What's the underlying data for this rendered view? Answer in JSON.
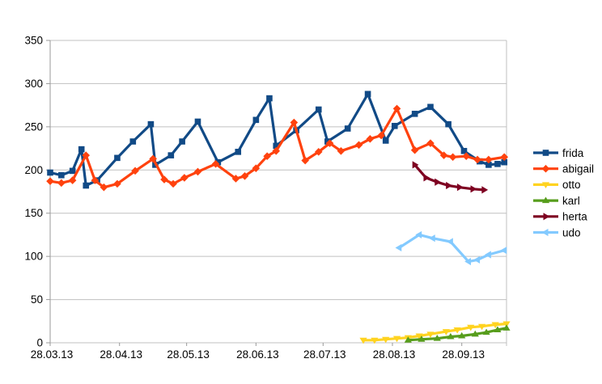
{
  "chart_data": {
    "type": "line",
    "title": "",
    "grid": true,
    "legend_position": "right",
    "colors": {
      "background": "#ffffff",
      "gridline": "#c0c0c0",
      "axis": "#9a9a9a",
      "tick_text": "#000000"
    },
    "x_axis": {
      "label": "",
      "unit": "days since first tick",
      "tick_labels": [
        "28.03.13",
        "28.04.13",
        "28.05.13",
        "28.06.13",
        "28.07.13",
        "28.08.13",
        "28.09.13"
      ],
      "tick_days": [
        0,
        31,
        61,
        92,
        122,
        153,
        184
      ],
      "range_days": [
        0,
        204
      ]
    },
    "y_axis": {
      "label": "",
      "tick_values": [
        0,
        50,
        100,
        150,
        200,
        250,
        300,
        350
      ],
      "range": [
        0,
        350
      ]
    },
    "series": [
      {
        "name": "frida",
        "color": "#114a86",
        "marker": "square",
        "x": [
          0,
          5,
          10,
          14,
          16,
          21,
          30,
          37,
          45,
          47,
          54,
          59,
          66,
          75,
          84,
          92,
          98,
          101,
          110,
          120,
          124,
          133,
          142,
          150,
          154,
          163,
          170,
          178,
          185,
          192,
          196,
          200,
          203
        ],
        "values": [
          197,
          194,
          199,
          224,
          182,
          188,
          214,
          233,
          253,
          206,
          217,
          233,
          256,
          209,
          221,
          258,
          283,
          228,
          246,
          270,
          233,
          248,
          288,
          234,
          251,
          265,
          273,
          253,
          222,
          210,
          206,
          207,
          209
        ]
      },
      {
        "name": "abigail",
        "color": "#ff420e",
        "marker": "diamond",
        "x": [
          0,
          5,
          10,
          16,
          20,
          24,
          30,
          38,
          46,
          51,
          55,
          60,
          66,
          74,
          83,
          87,
          92,
          97,
          101,
          109,
          114,
          120,
          125,
          130,
          138,
          143,
          148,
          155,
          163,
          170,
          176,
          180,
          186,
          191,
          196,
          203
        ],
        "values": [
          187,
          185,
          188,
          217,
          188,
          180,
          184,
          199,
          213,
          189,
          184,
          191,
          198,
          207,
          190,
          193,
          202,
          216,
          222,
          255,
          211,
          221,
          231,
          222,
          229,
          236,
          240,
          271,
          223,
          231,
          217,
          215,
          216,
          212,
          212,
          215
        ]
      },
      {
        "name": "otto",
        "color": "#ffd320",
        "marker": "triangle-down",
        "x": [
          140,
          145,
          150,
          155,
          160,
          165,
          170,
          177,
          182,
          188,
          193,
          199,
          204
        ],
        "values": [
          3,
          3,
          4,
          5,
          6,
          8,
          10,
          13,
          15,
          18,
          19,
          21,
          22
        ]
      },
      {
        "name": "karl",
        "color": "#579d1c",
        "marker": "triangle-up",
        "x": [
          160,
          166,
          173,
          179,
          184,
          190,
          195,
          200,
          204
        ],
        "values": [
          3,
          4,
          5,
          7,
          8,
          10,
          12,
          15,
          17
        ]
      },
      {
        "name": "herta",
        "color": "#7e0021",
        "marker": "triangle-right",
        "x": [
          163,
          168,
          173,
          178,
          183,
          189,
          194
        ],
        "values": [
          206,
          191,
          186,
          182,
          180,
          178,
          177
        ]
      },
      {
        "name": "udo",
        "color": "#83caff",
        "marker": "triangle-left",
        "x": [
          156,
          165,
          171,
          179,
          187,
          191,
          196,
          203
        ],
        "values": [
          110,
          125,
          121,
          117,
          94,
          96,
          102,
          107
        ]
      }
    ]
  }
}
